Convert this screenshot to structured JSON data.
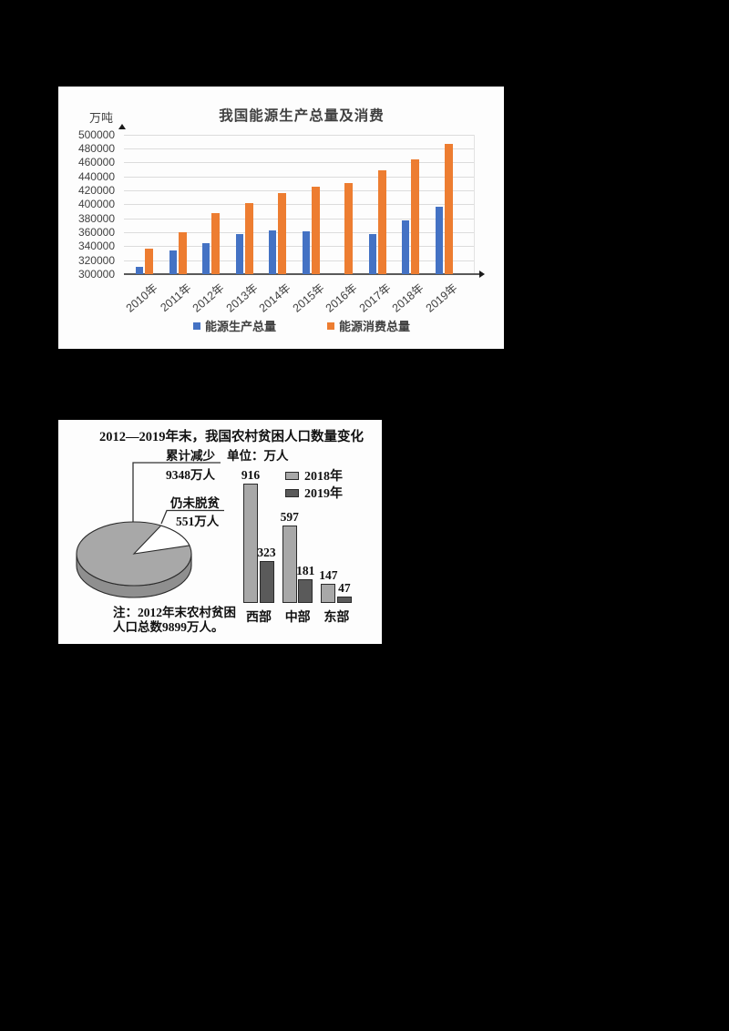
{
  "page": {
    "background": "#000000",
    "panel_background": "#fdfdfd"
  },
  "charts": {
    "energy": {
      "title": "我国能源生产总量及消费",
      "unit_label": "万吨",
      "legend": [
        "能源生产总量",
        "能源消费总量"
      ],
      "colors": {
        "production": "#4472C4",
        "consumption": "#ED7D31"
      }
    },
    "poverty": {
      "title": "2012—2019年末，我国农村贫困人口数量变化",
      "unit_label": "单位：万人",
      "cumulative_label": "累计减少",
      "cumulative_value": "9348万人",
      "remaining_label": "仍未脱贫",
      "remaining_value": "551万人",
      "note_line1": "注：2012年末农村贫困",
      "note_line2": "人口总数9899万人。",
      "legend": [
        "2018年",
        "2019年"
      ],
      "colors": {
        "y2018": "#a8a8a8",
        "y2019": "#5a5a5a"
      }
    }
  },
  "chart_data": [
    {
      "type": "bar",
      "title": "我国能源生产总量及消费",
      "ylabel": "万吨",
      "categories": [
        "2010年",
        "2011年",
        "2012年",
        "2013年",
        "2014年",
        "2015年",
        "2016年",
        "2017年",
        "2018年",
        "2019年"
      ],
      "series": [
        {
          "name": "能源生产总量",
          "color": "#4472C4",
          "values": [
            311000,
            334000,
            345000,
            358000,
            362000,
            361000,
            null,
            358000,
            377000,
            396000
          ]
        },
        {
          "name": "能源消费总量",
          "color": "#ED7D31",
          "values": [
            336000,
            360000,
            387000,
            402000,
            416000,
            425000,
            430000,
            449000,
            464000,
            486000
          ]
        }
      ],
      "ylim": [
        300000,
        500000
      ],
      "yticks": [
        500000,
        480000,
        460000,
        440000,
        420000,
        400000,
        380000,
        360000,
        340000,
        320000,
        300000
      ],
      "grid": true,
      "legend_position": "bottom"
    },
    {
      "type": "bar",
      "title": "2012—2019年末，我国农村贫困人口数量变化",
      "unit": "万人",
      "categories": [
        "西部",
        "中部",
        "东部"
      ],
      "series": [
        {
          "name": "2018年",
          "color": "#a8a8a8",
          "values": [
            916,
            597,
            147
          ]
        },
        {
          "name": "2019年",
          "color": "#5a5a5a",
          "values": [
            323,
            181,
            47
          ]
        }
      ],
      "data_labels": true,
      "legend_position": "top-right"
    },
    {
      "type": "pie",
      "title": "2012—2019年末，我国农村贫困人口数量变化",
      "slices": [
        {
          "label": "累计减少",
          "value": 9348,
          "unit": "万人",
          "color": "#a8a8a8"
        },
        {
          "label": "仍未脱贫",
          "value": 551,
          "unit": "万人",
          "color": "#ffffff"
        }
      ],
      "note": "注：2012年末农村贫困人口总数9899万人。"
    }
  ]
}
